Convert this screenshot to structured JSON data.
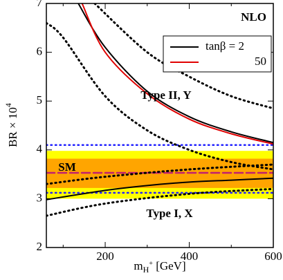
{
  "chart_data": {
    "type": "line",
    "xlabel": {
      "base": "m",
      "sub": "H",
      "subsup": "+",
      "rest": " [GeV]"
    },
    "ylabel": {
      "base": "BR × 10",
      "sup": "4"
    },
    "xlim": [
      60,
      600
    ],
    "ylim": [
      2,
      7
    ],
    "xticks": [
      200,
      400,
      600
    ],
    "xminor": [
      100,
      300,
      500
    ],
    "yticks": [
      2,
      3,
      4,
      5,
      6,
      7
    ],
    "annotations": [
      "NLO",
      "Type II, Y",
      "Type I, X",
      "SM"
    ],
    "bands": [
      {
        "color": "#ffff00",
        "range": [
          3.0,
          3.98
        ]
      },
      {
        "color": "#ffa500",
        "range": [
          3.22,
          3.82
        ]
      }
    ],
    "hlines": [
      {
        "value": 4.1,
        "color": "#2020ff",
        "style": "dotted"
      },
      {
        "value": 3.12,
        "color": "#2020ff",
        "style": "dotted"
      },
      {
        "value": 3.53,
        "color": "#c02070",
        "style": "dashed"
      }
    ],
    "series": [
      {
        "name": "tanβ = 2",
        "color": "#000000",
        "style": "solid",
        "x": [
          136,
          200,
          300,
          400,
          500,
          600
        ],
        "values": [
          7,
          6.1,
          5.2,
          4.68,
          4.37,
          4.15
        ]
      },
      {
        "name": "50",
        "color": "#e00000",
        "style": "solid",
        "x": [
          145,
          200,
          300,
          400,
          500,
          600
        ],
        "values": [
          7,
          6.0,
          5.15,
          4.63,
          4.33,
          4.12
        ]
      },
      {
        "color": "#000000",
        "style": "solid",
        "x": [
          60,
          200,
          300,
          400,
          500,
          600
        ],
        "values": [
          2.98,
          3.17,
          3.27,
          3.34,
          3.38,
          3.42
        ]
      },
      {
        "color": "#000000",
        "style": "dotted",
        "x": [
          175,
          300,
          400,
          500,
          600
        ],
        "values": [
          7,
          6.0,
          5.5,
          5.1,
          4.85
        ]
      },
      {
        "color": "#000000",
        "style": "dotted",
        "x": [
          60,
          100,
          200,
          300,
          400,
          500,
          600
        ],
        "values": [
          6.6,
          6.3,
          5.1,
          4.4,
          4.0,
          3.75,
          3.6
        ]
      },
      {
        "color": "#000000",
        "style": "dotted",
        "x": [
          60,
          200,
          400,
          600
        ],
        "values": [
          3.3,
          3.45,
          3.6,
          3.7
        ]
      },
      {
        "color": "#000000",
        "style": "dotted",
        "x": [
          60,
          200,
          400,
          600
        ],
        "values": [
          2.65,
          2.9,
          3.1,
          3.2
        ]
      }
    ]
  }
}
